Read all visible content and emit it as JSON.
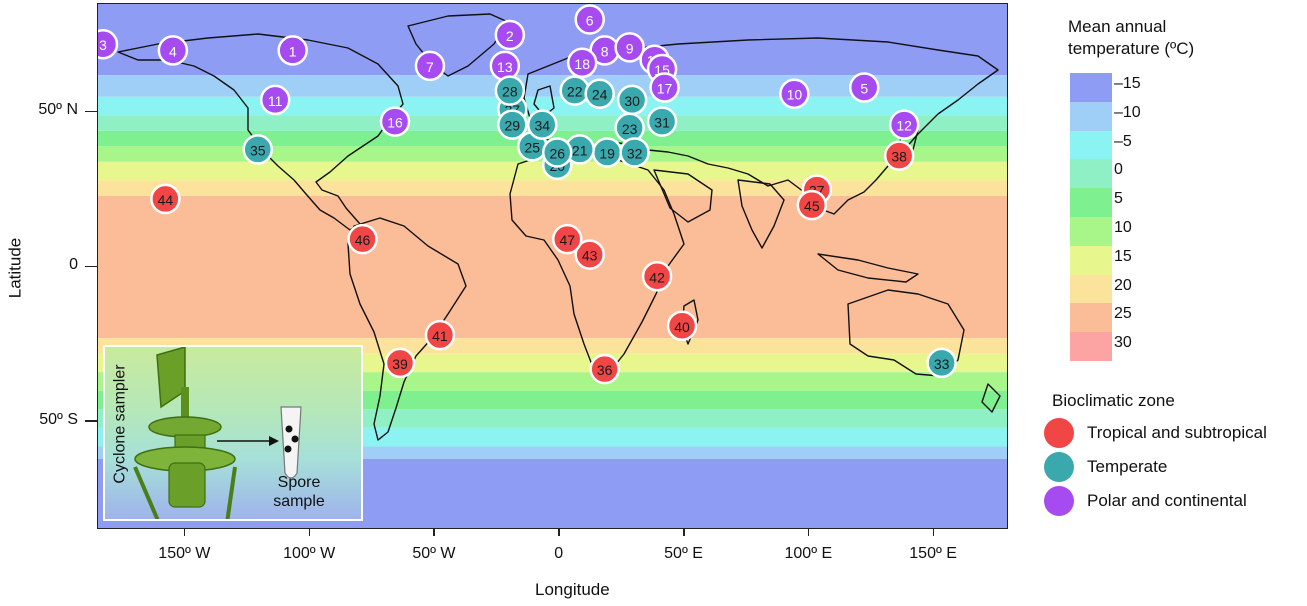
{
  "axes": {
    "x_title": "Longitude",
    "y_title": "Latitude",
    "x_ticks": [
      "150º W",
      "100º W",
      "50º W",
      "0",
      "50º E",
      "100º E",
      "150º E"
    ],
    "x_tick_values": [
      -150,
      -100,
      -50,
      0,
      50,
      100,
      150
    ],
    "y_ticks": [
      "50º N",
      "0",
      "50º S"
    ],
    "y_tick_values": [
      50,
      0,
      -50
    ],
    "lon_range": [
      -185,
      180
    ],
    "lat_range": [
      -85,
      85
    ]
  },
  "temperature_legend": {
    "title_line1": "Mean annual",
    "title_line2": "temperature (ºC)",
    "levels": [
      {
        "label": "–15",
        "color": "#8f9cf4"
      },
      {
        "label": "–10",
        "color": "#9fcff7"
      },
      {
        "label": "–5",
        "color": "#8cf3f3"
      },
      {
        "label": "0",
        "color": "#8ff0c6"
      },
      {
        "label": "5",
        "color": "#7ef08f"
      },
      {
        "label": "10",
        "color": "#a8f58a"
      },
      {
        "label": "15",
        "color": "#e8f78d"
      },
      {
        "label": "20",
        "color": "#fbe39c"
      },
      {
        "label": "25",
        "color": "#fbbd98"
      },
      {
        "label": "30",
        "color": "#fca4a4"
      }
    ]
  },
  "zone_legend": {
    "title": "Bioclimatic zone",
    "zones": [
      {
        "key": "tropical",
        "label": "Tropical and subtropical",
        "color": "#f04646"
      },
      {
        "key": "temperate",
        "label": "Temperate",
        "color": "#3aa9ae"
      },
      {
        "key": "polar",
        "label": "Polar and continental",
        "color": "#a64bf0"
      }
    ]
  },
  "sites": [
    {
      "id": "1",
      "lon": -107,
      "lat": 70,
      "zone": "polar"
    },
    {
      "id": "2",
      "lon": -20,
      "lat": 75,
      "zone": "polar"
    },
    {
      "id": "3",
      "lon": -183,
      "lat": 72,
      "zone": "polar"
    },
    {
      "id": "4",
      "lon": -155,
      "lat": 70,
      "zone": "polar"
    },
    {
      "id": "5",
      "lon": 122,
      "lat": 58,
      "zone": "polar"
    },
    {
      "id": "6",
      "lon": 12,
      "lat": 80,
      "zone": "polar"
    },
    {
      "id": "7",
      "lon": -52,
      "lat": 65,
      "zone": "polar"
    },
    {
      "id": "8",
      "lon": 18,
      "lat": 70,
      "zone": "polar"
    },
    {
      "id": "9",
      "lon": 28,
      "lat": 71,
      "zone": "polar"
    },
    {
      "id": "10",
      "lon": 94,
      "lat": 56,
      "zone": "polar"
    },
    {
      "id": "11",
      "lon": -114,
      "lat": 54,
      "zone": "polar"
    },
    {
      "id": "12",
      "lon": 138,
      "lat": 46,
      "zone": "polar"
    },
    {
      "id": "13",
      "lon": -22,
      "lat": 65,
      "zone": "polar"
    },
    {
      "id": "14",
      "lon": 38,
      "lat": 67,
      "zone": "polar"
    },
    {
      "id": "15",
      "lon": 41,
      "lat": 64,
      "zone": "polar"
    },
    {
      "id": "16",
      "lon": -66,
      "lat": 47,
      "zone": "polar"
    },
    {
      "id": "17",
      "lon": 42,
      "lat": 58,
      "zone": "polar"
    },
    {
      "id": "18",
      "lon": 9,
      "lat": 66,
      "zone": "polar"
    },
    {
      "id": "19",
      "lon": 19,
      "lat": 37,
      "zone": "temperate"
    },
    {
      "id": "20",
      "lon": -1,
      "lat": 33,
      "zone": "temperate"
    },
    {
      "id": "21",
      "lon": 8,
      "lat": 38,
      "zone": "temperate"
    },
    {
      "id": "22",
      "lon": 6,
      "lat": 57,
      "zone": "temperate"
    },
    {
      "id": "23",
      "lon": 28,
      "lat": 45,
      "zone": "temperate"
    },
    {
      "id": "24",
      "lon": 16,
      "lat": 56,
      "zone": "temperate"
    },
    {
      "id": "25",
      "lon": -11,
      "lat": 39,
      "zone": "temperate"
    },
    {
      "id": "26",
      "lon": -1,
      "lat": 37,
      "zone": "temperate"
    },
    {
      "id": "27",
      "lon": -19,
      "lat": 51,
      "zone": "temperate"
    },
    {
      "id": "28",
      "lon": -20,
      "lat": 57,
      "zone": "temperate"
    },
    {
      "id": "29",
      "lon": -19,
      "lat": 46,
      "zone": "temperate"
    },
    {
      "id": "30",
      "lon": 29,
      "lat": 54,
      "zone": "temperate"
    },
    {
      "id": "31",
      "lon": 41,
      "lat": 47,
      "zone": "temperate"
    },
    {
      "id": "32",
      "lon": 30,
      "lat": 37,
      "zone": "temperate"
    },
    {
      "id": "33",
      "lon": 153,
      "lat": -31,
      "zone": "temperate"
    },
    {
      "id": "34",
      "lon": -7,
      "lat": 46,
      "zone": "temperate"
    },
    {
      "id": "35",
      "lon": -121,
      "lat": 38,
      "zone": "temperate"
    },
    {
      "id": "36",
      "lon": 18,
      "lat": -33,
      "zone": "tropical"
    },
    {
      "id": "37",
      "lon": 103,
      "lat": 25,
      "zone": "tropical"
    },
    {
      "id": "38",
      "lon": 136,
      "lat": 36,
      "zone": "tropical"
    },
    {
      "id": "39",
      "lon": -64,
      "lat": -31,
      "zone": "tropical"
    },
    {
      "id": "40",
      "lon": 49,
      "lat": -19,
      "zone": "tropical"
    },
    {
      "id": "41",
      "lon": -48,
      "lat": -22,
      "zone": "tropical"
    },
    {
      "id": "42",
      "lon": 39,
      "lat": -3,
      "zone": "tropical"
    },
    {
      "id": "43",
      "lon": 12,
      "lat": 4,
      "zone": "tropical"
    },
    {
      "id": "44",
      "lon": -158,
      "lat": 22,
      "zone": "tropical"
    },
    {
      "id": "45",
      "lon": 101,
      "lat": 20,
      "zone": "tropical"
    },
    {
      "id": "46",
      "lon": -79,
      "lat": 9,
      "zone": "tropical"
    },
    {
      "id": "47",
      "lon": 3,
      "lat": 9,
      "zone": "tropical"
    }
  ],
  "inset": {
    "sampler_label": "Cyclone sampler",
    "spore_label_line1": "Spore",
    "spore_label_line2": "sample"
  }
}
